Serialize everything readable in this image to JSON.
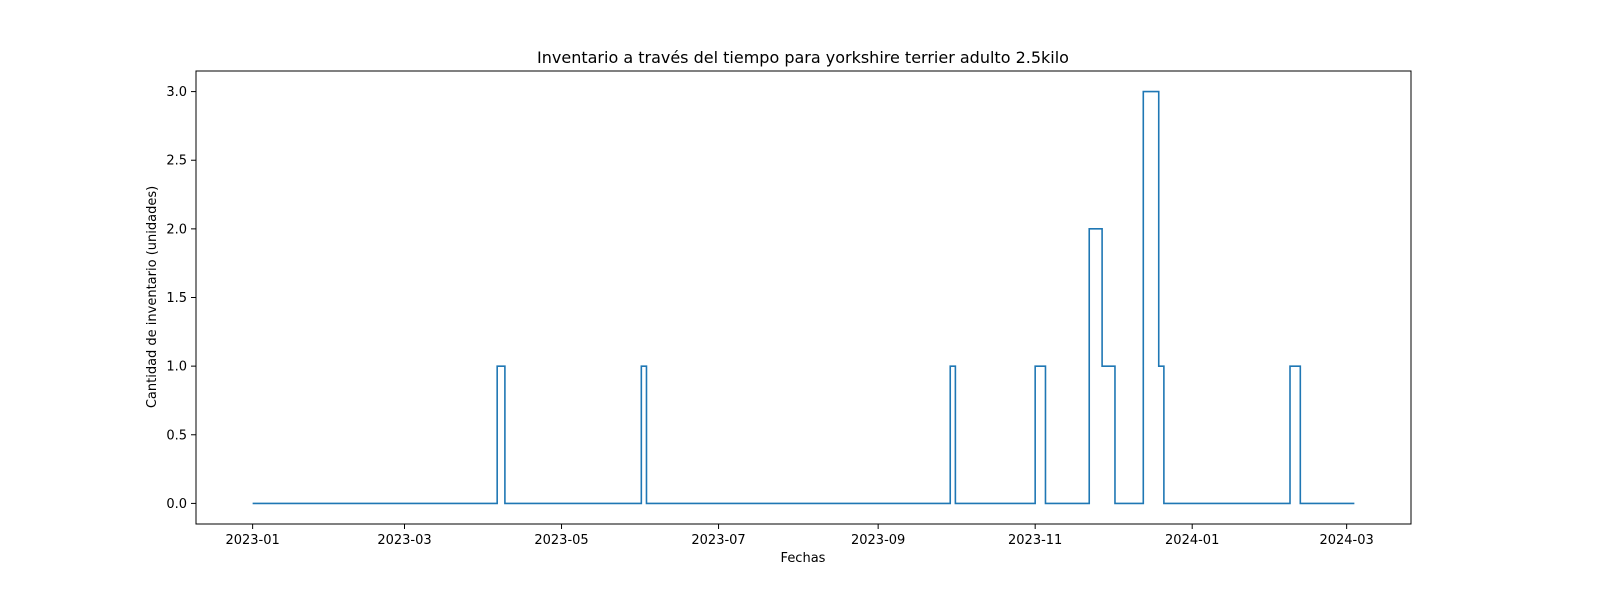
{
  "chart_data": {
    "type": "line",
    "title": "Inventario a través del tiempo para yorkshire terrier adulto  2.5kilo",
    "xlabel": "Fechas",
    "ylabel": "Cantidad de inventario (unidades)",
    "x_tick_labels": [
      "2023-01",
      "2023-03",
      "2023-05",
      "2023-07",
      "2023-09",
      "2023-11",
      "2024-01",
      "2024-03"
    ],
    "x_tick_dates": [
      "2023-01-01",
      "2023-03-01",
      "2023-05-01",
      "2023-07-01",
      "2023-09-01",
      "2023-11-01",
      "2024-01-01",
      "2024-03-01"
    ],
    "y_tick_labels": [
      "0.0",
      "0.5",
      "1.0",
      "1.5",
      "2.0",
      "2.5",
      "3.0"
    ],
    "y_tick_values": [
      0,
      0.5,
      1.0,
      1.5,
      2.0,
      2.5,
      3.0
    ],
    "xlim": [
      "2022-12-10",
      "2024-03-26"
    ],
    "ylim": [
      -0.15,
      3.15
    ],
    "grid": false,
    "line_color": "#1f77b4",
    "series": [
      {
        "step": "post",
        "x": [
          "2023-01-01",
          "2023-04-06",
          "2023-04-09",
          "2023-06-01",
          "2023-06-03",
          "2023-09-29",
          "2023-10-01",
          "2023-11-01",
          "2023-11-05",
          "2023-11-22",
          "2023-11-27",
          "2023-12-02",
          "2023-12-13",
          "2023-12-19",
          "2023-12-21",
          "2024-02-08",
          "2024-02-12",
          "2024-03-04"
        ],
        "y": [
          0,
          1,
          0,
          1,
          0,
          1,
          0,
          1,
          0,
          2,
          1,
          0,
          3,
          1,
          0,
          1,
          0,
          0
        ]
      }
    ]
  }
}
